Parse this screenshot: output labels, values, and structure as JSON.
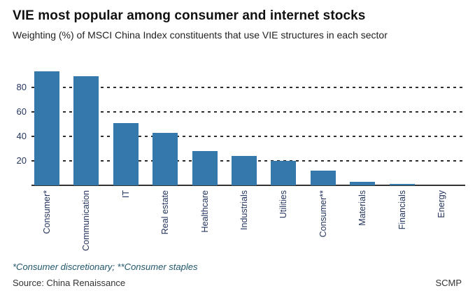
{
  "header": {
    "title": "VIE most popular among consumer and internet stocks",
    "subtitle": "Weighting (%) of MSCI China Index constituents that use VIE structures in each sector"
  },
  "chart_data": {
    "type": "bar",
    "title": "VIE most popular among consumer and internet stocks",
    "subtitle": "Weighting (%) of MSCI China Index constituents that use VIE structures in each sector",
    "categories": [
      "Consumer*",
      "Communication",
      "IT",
      "Real estate",
      "Healthcare",
      "Industrials",
      "Utilities",
      "Consumer**",
      "Materials",
      "Financials",
      "Energy"
    ],
    "values": [
      93,
      89,
      51,
      43,
      28,
      24,
      20,
      12,
      3,
      1,
      0
    ],
    "xlabel": "",
    "ylabel": "",
    "ylim": [
      0,
      100
    ],
    "yticks": [
      20,
      40,
      60,
      80
    ],
    "grid": "horizontal dashed, behind bars",
    "legend": "none",
    "bar_color": "#3578ab",
    "axis_label_color": "#25355e"
  },
  "footer": {
    "footnote": "*Consumer discretionary; **Consumer staples",
    "source": "Source: China Renaissance",
    "credit": "SCMP"
  }
}
